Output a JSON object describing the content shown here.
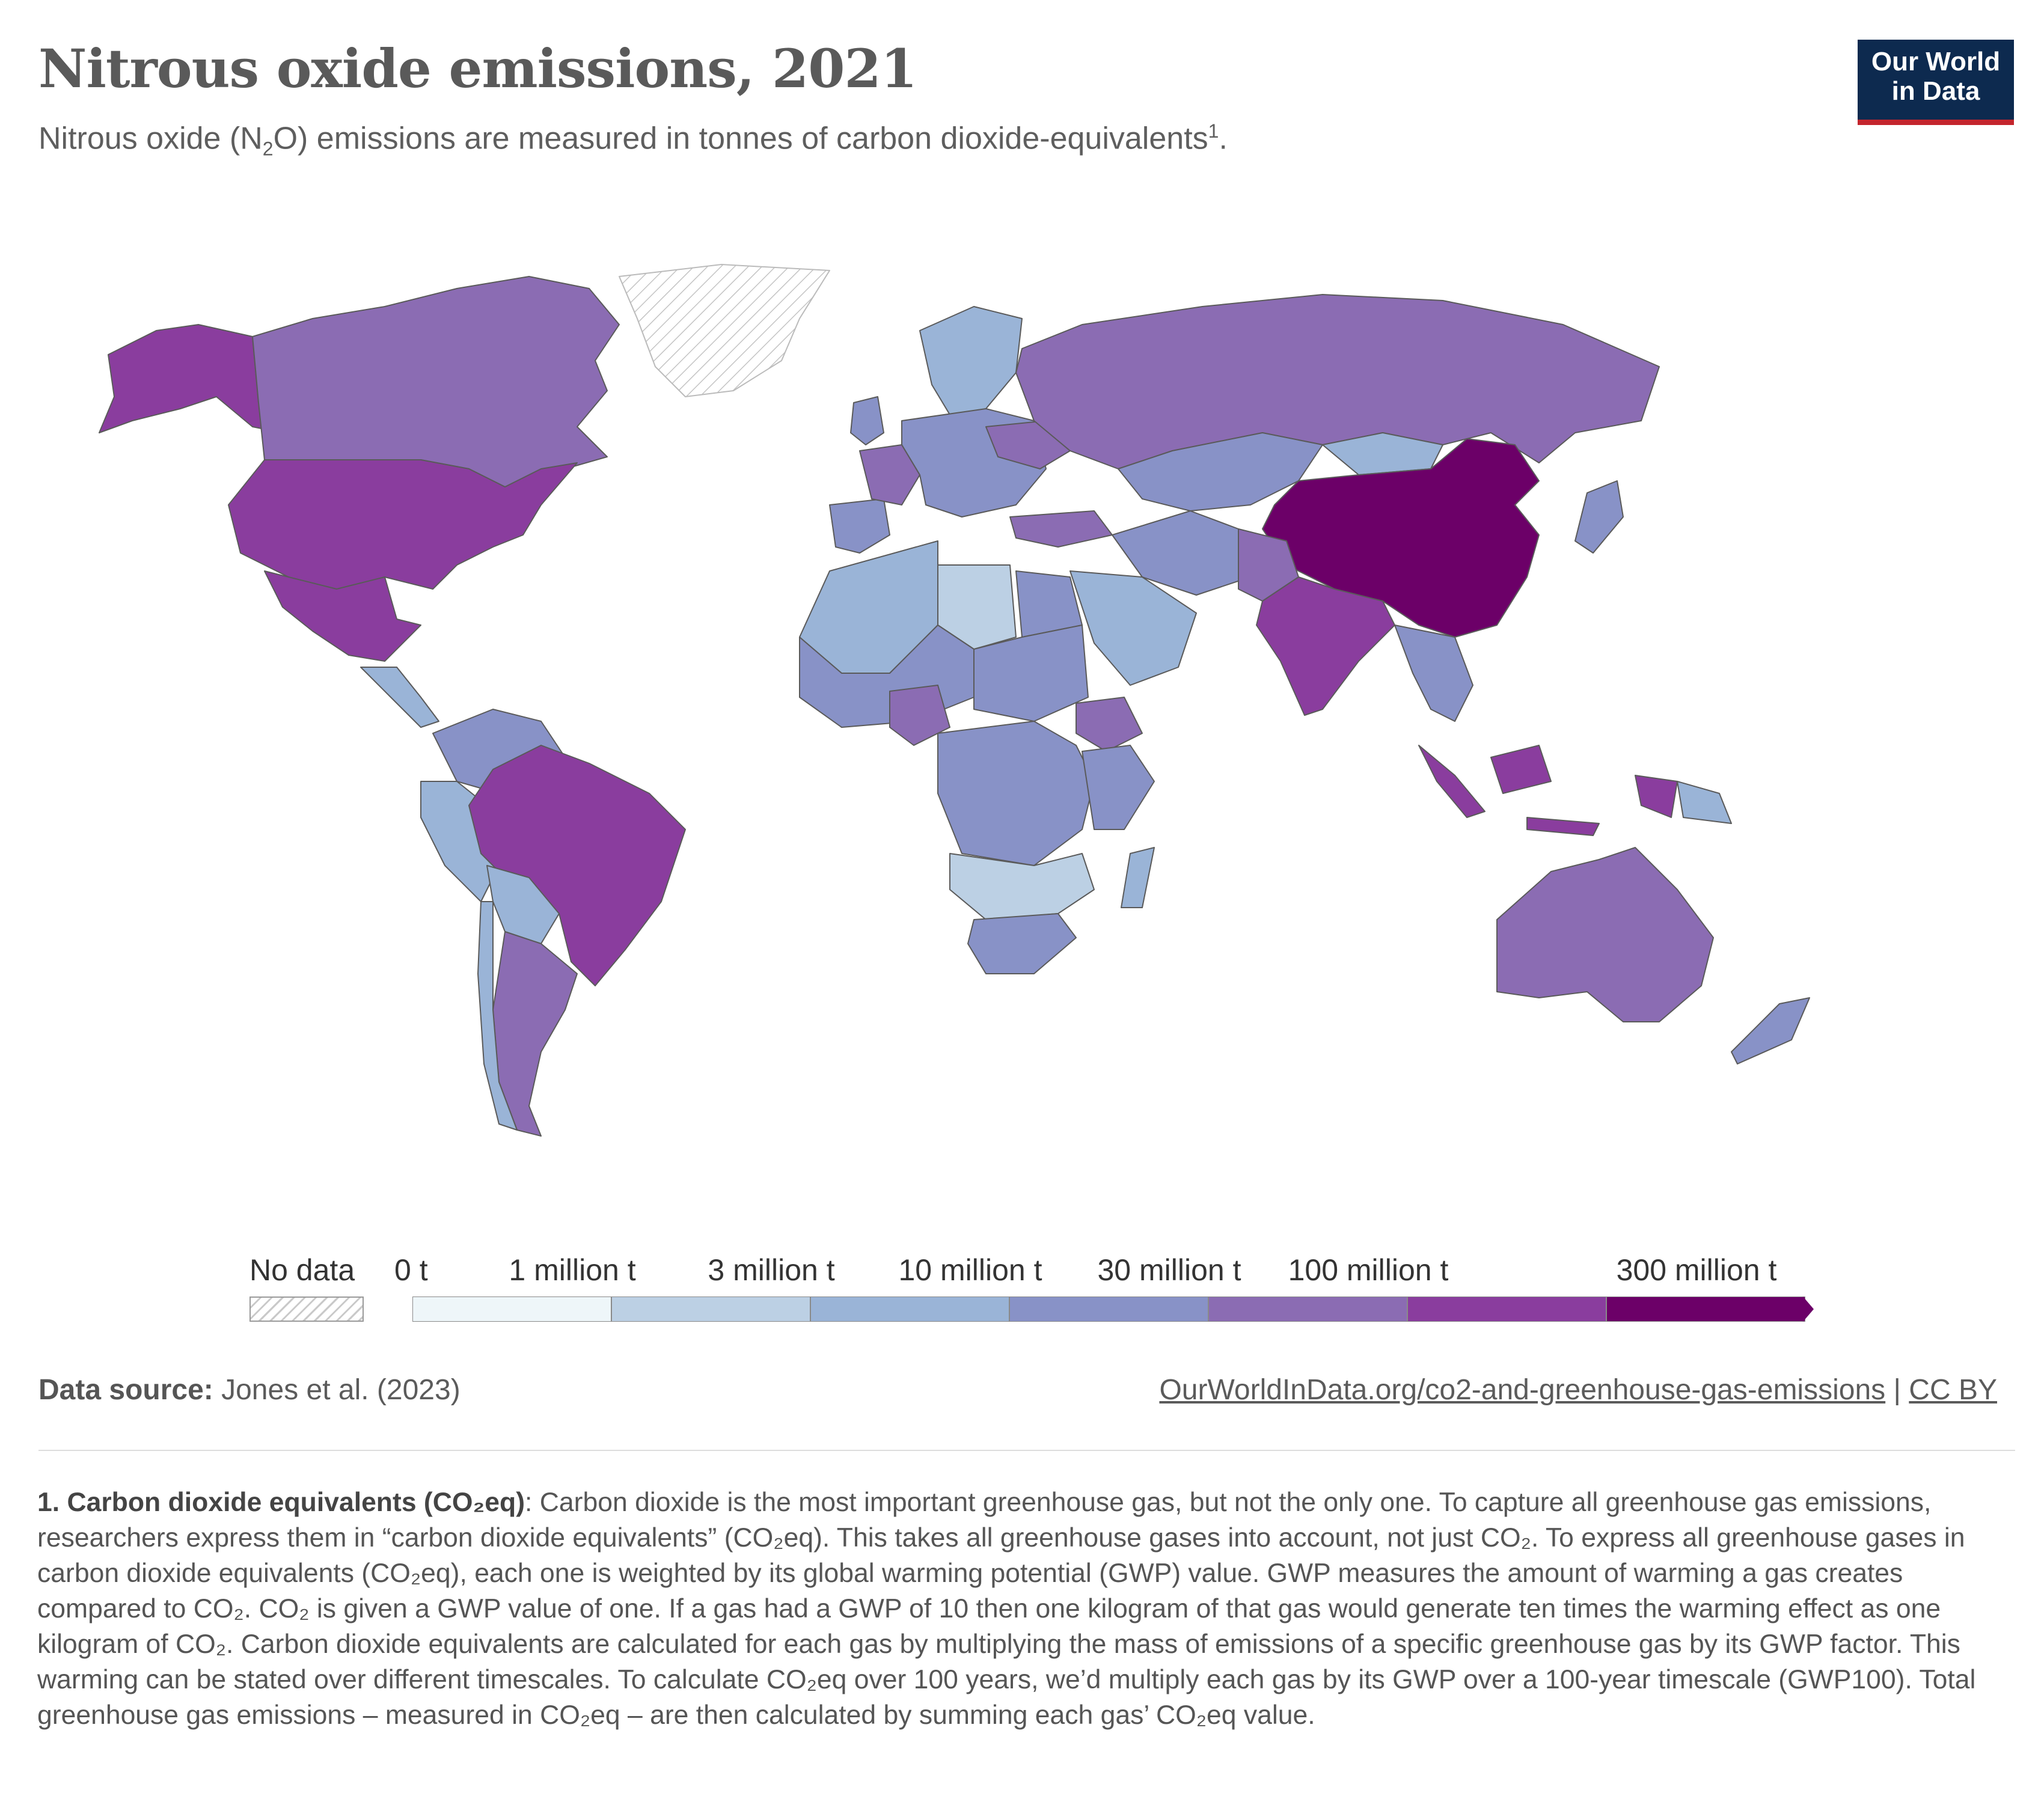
{
  "header": {
    "title": "Nitrous oxide emissions, 2021",
    "subtitle_pre": "Nitrous oxide (N",
    "subtitle_sub": "2",
    "subtitle_mid": "O) emissions are measured in tonnes of carbon dioxide-equivalents",
    "subtitle_sup": "1",
    "subtitle_end": "."
  },
  "logo": {
    "line1": "Our World",
    "line2": "in Data"
  },
  "legend": {
    "no_data_label": "No data",
    "ticks": [
      "0 t",
      "1 million t",
      "3 million t",
      "10 million t",
      "30 million t",
      "100 million t",
      "300 million t"
    ],
    "bins": [
      {
        "color": "#eef6f9"
      },
      {
        "color": "#bcd0e4"
      },
      {
        "color": "#9ab4d7"
      },
      {
        "color": "#8892c7"
      },
      {
        "color": "#8b6cb3"
      },
      {
        "color": "#8a3d9e"
      },
      {
        "color": "#6c0068"
      }
    ]
  },
  "chart_data": {
    "type": "choropleth-map",
    "year": "2021",
    "unit": "tonnes of CO2-equivalents",
    "scale_breaks": [
      0,
      1000000,
      3000000,
      10000000,
      30000000,
      100000000,
      300000000
    ],
    "regions": [
      {
        "name": "China",
        "bin": 6
      },
      {
        "name": "India",
        "bin": 5
      },
      {
        "name": "United States",
        "bin": 5
      },
      {
        "name": "Brazil",
        "bin": 5
      },
      {
        "name": "Mexico",
        "bin": 5
      },
      {
        "name": "Indonesia",
        "bin": 5
      },
      {
        "name": "Russia",
        "bin": 4
      },
      {
        "name": "Canada",
        "bin": 4
      },
      {
        "name": "Australia",
        "bin": 4
      },
      {
        "name": "Argentina",
        "bin": 4
      },
      {
        "name": "Nigeria",
        "bin": 4
      },
      {
        "name": "Ethiopia",
        "bin": 4
      },
      {
        "name": "Pakistan",
        "bin": 4
      },
      {
        "name": "Turkey",
        "bin": 4
      },
      {
        "name": "France",
        "bin": 4
      },
      {
        "name": "Kazakhstan",
        "bin": 3
      },
      {
        "name": "DR Congo",
        "bin": 3
      },
      {
        "name": "Sudan",
        "bin": 3
      },
      {
        "name": "Colombia",
        "bin": 3
      },
      {
        "name": "Egypt",
        "bin": 3
      },
      {
        "name": "Iran",
        "bin": 3
      },
      {
        "name": "Peru",
        "bin": 2
      },
      {
        "name": "Saudi Arabia",
        "bin": 2
      },
      {
        "name": "Algeria",
        "bin": 2
      },
      {
        "name": "Libya",
        "bin": 1
      },
      {
        "name": "Namibia",
        "bin": 1
      },
      {
        "name": "Greenland",
        "bin": -1
      }
    ]
  },
  "footer": {
    "source_label": "Data source:",
    "source_text": " Jones et al. (2023)",
    "url": "OurWorldInData.org/co2-and-greenhouse-gas-emissions",
    "sep": " | ",
    "license": "CC BY"
  },
  "note": {
    "head": "1. Carbon dioxide equivalents (CO₂eq)",
    "text": ": Carbon dioxide is the most important greenhouse gas, but not the only one. To capture all greenhouse gas emissions, researchers express them in “carbon dioxide equivalents” (CO₂eq). This takes all greenhouse gases into account, not just CO₂. To express all greenhouse gases in carbon dioxide equivalents (CO₂eq), each one is weighted by its global warming potential (GWP) value. GWP measures the amount of warming a gas creates compared to CO₂. CO₂ is given a GWP value of one. If a gas had a GWP of 10 then one kilogram of that gas would generate ten times the warming effect as one kilogram of CO₂. Carbon dioxide equivalents are calculated for each gas by multiplying the mass of emissions of a specific greenhouse gas by its GWP factor. This warming can be stated over different timescales. To calculate CO₂eq over 100 years, we’d multiply each gas by its GWP over a 100-year timescale (GWP100). Total greenhouse gas emissions – measured in CO₂eq – are then calculated by summing each gas’ CO₂eq value."
  }
}
